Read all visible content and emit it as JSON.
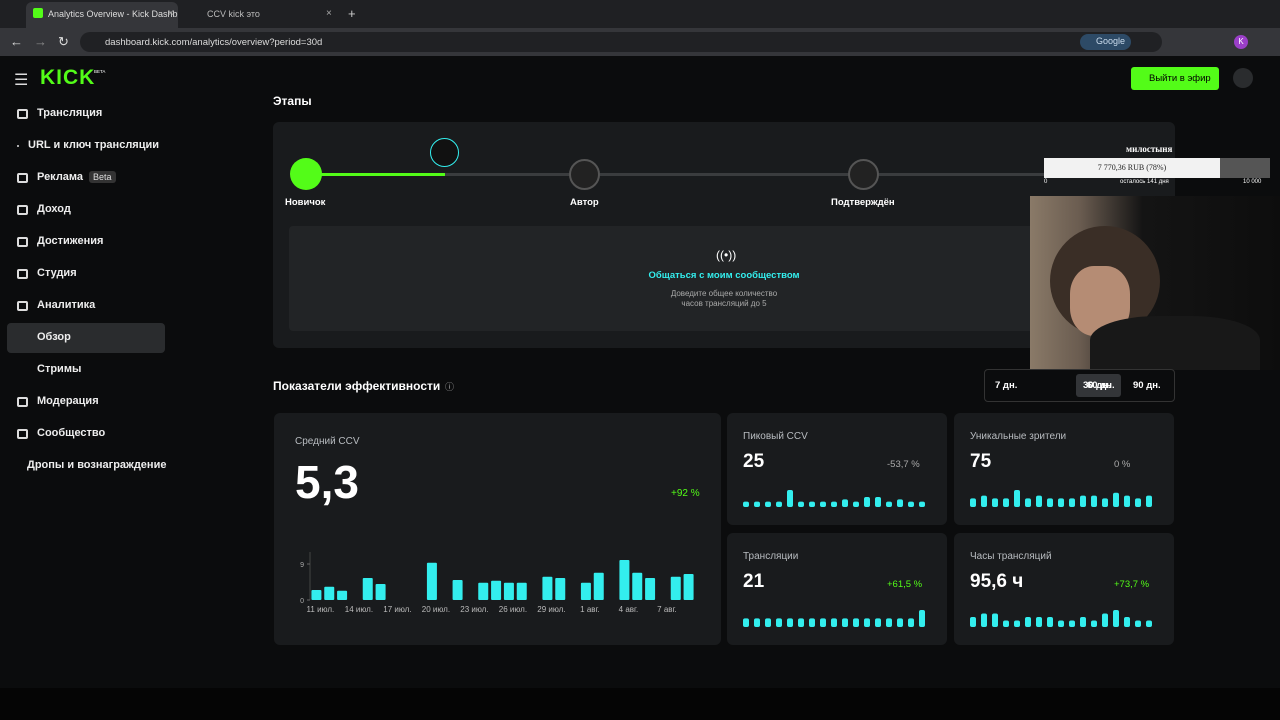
{
  "browser": {
    "tabs": [
      "Analytics Overview - Kick Dashb",
      "CCV kick это"
    ],
    "url": "dashboard.kick.com/analytics/overview?period=30d",
    "search_chip": "Google",
    "profile": "K"
  },
  "header": {
    "logo": "KICK",
    "logo_badge": "BETA",
    "go_live": "Выйти в эфир"
  },
  "sidebar": {
    "items": [
      "Трансляция",
      "URL и ключ трансляции",
      "Реклама",
      "Доход",
      "Достижения",
      "Студия",
      "Аналитика",
      "Обзор",
      "Стримы",
      "Модерация",
      "Сообщество",
      "Дропы и вознаграждение"
    ],
    "ad_badge": "Beta"
  },
  "stages": {
    "title": "Этапы",
    "steps": [
      "Новичок",
      "Автор",
      "Подтверждён"
    ],
    "task_title": "Общаться с моим сообществом",
    "task_text": [
      "Доведите общее количество",
      "часов трансляций до 5"
    ]
  },
  "donation": {
    "title": "милостыня",
    "amount": "7 770,36 RUB (78%)",
    "min": "0",
    "remaining": "осталось 141 дня",
    "max": "10 000"
  },
  "metrics": {
    "title": "Показатели эффективности",
    "periods": [
      "7 дн.",
      "30 дн.",
      "60 дн.",
      "90 дн."
    ],
    "cards": [
      {
        "label": "Средний CCV",
        "value": "5,3",
        "change": "+92 %"
      },
      {
        "label": "Пиковый CCV",
        "value": "25",
        "change": "-53,7 %",
        "sparkline": [
          1,
          1,
          1,
          1,
          6,
          1,
          1,
          1,
          1,
          2,
          1,
          3,
          3,
          1,
          2,
          1,
          1
        ]
      },
      {
        "label": "Уникальные зрители",
        "value": "75",
        "change": "0 %",
        "sparkline": [
          2,
          3,
          2,
          2,
          5,
          2,
          3,
          2,
          2,
          2,
          3,
          3,
          2,
          4,
          3,
          2,
          3
        ]
      },
      {
        "label": "Трансляции",
        "value": "21",
        "change": "+61,5 %",
        "sparkline": [
          2,
          2,
          2,
          2,
          2,
          2,
          2,
          2,
          2,
          2,
          2,
          2,
          2,
          2,
          2,
          2,
          5
        ]
      },
      {
        "label": "Часы трансляций",
        "value": "95,6 ч",
        "change": "+73,7 %",
        "sparkline": [
          2,
          3,
          3,
          1,
          1,
          2,
          2,
          2,
          1,
          1,
          2,
          1,
          3,
          4,
          2,
          1,
          1
        ]
      }
    ],
    "chart": {
      "type": "bar",
      "color": "#33eeee",
      "categories": [
        "11 июл.",
        null,
        null,
        "14 июл.",
        null,
        null,
        "17 июл.",
        null,
        null,
        "20 июл.",
        null,
        null,
        "23 июл.",
        null,
        null,
        "26 июл.",
        null,
        null,
        "29 июл.",
        null,
        null,
        "1 авг.",
        null,
        null,
        "4 авг.",
        null,
        null,
        "7 авг.",
        null,
        null
      ],
      "values": [
        2.5,
        3.3,
        2.3,
        0,
        5.5,
        4,
        0,
        0,
        0,
        9.3,
        0,
        5,
        0,
        4.3,
        4.8,
        4.3,
        4.3,
        0,
        5.8,
        5.5,
        0,
        4.3,
        6.8,
        0,
        10,
        6.8,
        5.5,
        0,
        5.8,
        6.5
      ],
      "ylim": [
        0,
        11
      ],
      "yticks": [
        0,
        9
      ]
    }
  }
}
